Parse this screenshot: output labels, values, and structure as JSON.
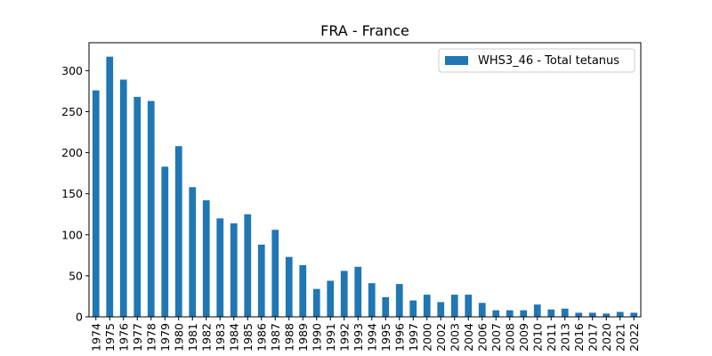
{
  "chart_data": {
    "type": "bar",
    "title": "FRA - France",
    "xlabel": "",
    "ylabel": "",
    "ylim": [
      0,
      334
    ],
    "yticks": [
      0,
      50,
      100,
      150,
      200,
      250,
      300
    ],
    "legend_position": "top-right",
    "grid": false,
    "categories": [
      "1974",
      "1975",
      "1976",
      "1977",
      "1978",
      "1979",
      "1980",
      "1981",
      "1982",
      "1983",
      "1984",
      "1985",
      "1986",
      "1987",
      "1988",
      "1989",
      "1990",
      "1991",
      "1992",
      "1993",
      "1994",
      "1995",
      "1996",
      "1997",
      "2000",
      "2002",
      "2003",
      "2004",
      "2006",
      "2007",
      "2008",
      "2009",
      "2010",
      "2011",
      "2013",
      "2016",
      "2017",
      "2020",
      "2021",
      "2022"
    ],
    "series": [
      {
        "name": "WHS3_46 - Total tetanus",
        "color": "#1f77b4",
        "values": [
          276,
          317,
          289,
          268,
          263,
          183,
          208,
          158,
          142,
          120,
          114,
          125,
          88,
          106,
          73,
          63,
          34,
          44,
          56,
          61,
          41,
          24,
          40,
          20,
          27,
          18,
          27,
          27,
          17,
          8,
          8,
          8,
          15,
          9,
          10,
          5,
          5,
          4,
          6,
          5
        ]
      }
    ]
  }
}
